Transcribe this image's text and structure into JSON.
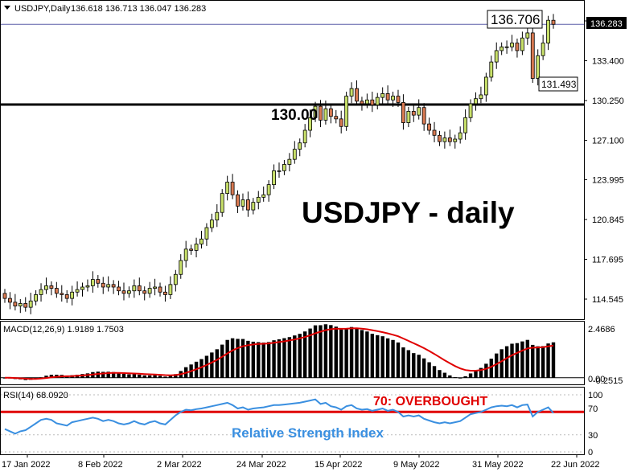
{
  "header": {
    "symbol": "USDJPY,Daily",
    "ohlc": "136.618 136.713 136.047 136.283"
  },
  "annotations": {
    "big_label": "USDJPY - daily",
    "level_label": "130.00",
    "high_box": "136.706",
    "low_box": "131.493",
    "price_tag": "136.283",
    "rsi_overbought_label": "70: OVERBOUGHT",
    "rsi_caption": "Relative Strength Index"
  },
  "macd_panel": {
    "title": "MACD(12,26,9) 1.9189 1.7503",
    "tick_labels": [
      "2.4686",
      "0.00",
      "-0.2515"
    ]
  },
  "rsi_panel": {
    "title": "RSI(14) 68.0920",
    "tick_labels": [
      "100",
      "70",
      "30",
      "0"
    ]
  },
  "colors": {
    "bull_candle": "#c8e06a",
    "bear_candle": "#d97a52",
    "macd_hist": "#000000",
    "macd_signal": "#e00000",
    "rsi_line": "#3a8fe0",
    "rsi_level": "#e00000",
    "caption_blue": "#3a8fe0",
    "overbought_red": "#e00000"
  },
  "chart_data": [
    {
      "type": "candlestick",
      "title": "USDJPY - daily",
      "y_ticks": [
        114.545,
        117.695,
        120.845,
        123.995,
        127.1,
        130.25,
        133.4,
        136.55
      ],
      "y_tick_labels": [
        "114.545",
        "117.695",
        "120.845",
        "123.995",
        "127.100",
        "130.250",
        "133.400",
        "136.550"
      ],
      "ylim": [
        112.6,
        138.4
      ],
      "x_tick_labels": [
        "17 Jan 2022",
        "8 Feb 2022",
        "2 Mar 2022",
        "24 Mar 2022",
        "15 Apr 2022",
        "9 May 2022",
        "31 May 2022",
        "22 Jun 2022"
      ],
      "horizontal_level": 130.0,
      "last_price": 136.283,
      "annotated_high": 136.706,
      "annotated_low": 131.493,
      "close": [
        114.6,
        114.3,
        114.0,
        114.2,
        113.9,
        114.4,
        114.9,
        115.3,
        115.6,
        115.4,
        115.0,
        114.9,
        114.6,
        115.1,
        115.3,
        115.5,
        115.6,
        116.1,
        115.8,
        115.5,
        115.7,
        115.5,
        115.2,
        115.0,
        115.2,
        115.6,
        115.2,
        115.0,
        115.4,
        115.5,
        115.1,
        114.9,
        115.7,
        116.5,
        117.6,
        118.5,
        118.4,
        118.9,
        119.3,
        120.2,
        120.8,
        121.4,
        122.9,
        123.8,
        122.8,
        121.9,
        122.4,
        121.6,
        122.2,
        122.6,
        122.8,
        123.6,
        124.7,
        124.7,
        125.2,
        125.6,
        126.4,
        126.9,
        127.9,
        128.9,
        129.8,
        128.7,
        129.6,
        129.0,
        128.8,
        128.2,
        130.6,
        131.2,
        130.2,
        130.0,
        130.3,
        129.9,
        130.5,
        130.8,
        130.3,
        130.6,
        130.1,
        128.5,
        129.4,
        129.1,
        129.7,
        128.4,
        127.9,
        127.5,
        127.0,
        127.3,
        127.0,
        127.2,
        127.7,
        128.9,
        130.0,
        130.4,
        130.7,
        132.1,
        133.3,
        134.2,
        134.5,
        134.5,
        134.8,
        134.2,
        135.2,
        135.6,
        132.0,
        133.8,
        134.8,
        136.6,
        136.28
      ],
      "rsi_points": [
        40,
        36,
        32,
        36,
        38,
        44,
        50,
        56,
        58,
        56,
        50,
        48,
        46,
        52,
        54,
        56,
        58,
        60,
        58,
        54,
        56,
        54,
        50,
        48,
        50,
        54,
        50,
        48,
        52,
        54,
        50,
        48,
        56,
        64,
        70,
        74,
        73,
        75,
        76,
        78,
        80,
        82,
        84,
        86,
        82,
        76,
        78,
        74,
        76,
        77,
        78,
        80,
        82,
        82,
        83,
        84,
        85,
        86,
        88,
        90,
        92,
        84,
        86,
        80,
        78,
        74,
        80,
        82,
        76,
        74,
        75,
        72,
        74,
        76,
        72,
        74,
        70,
        62,
        64,
        62,
        64,
        58,
        55,
        52,
        50,
        52,
        50,
        52,
        54,
        60,
        66,
        68,
        70,
        74,
        78,
        80,
        81,
        80,
        82,
        78,
        82,
        83,
        62,
        70,
        74,
        78,
        68
      ],
      "macd_hist_last": 1.9189,
      "macd_signal_last": 1.7503,
      "macd_ylim": [
        -0.2515,
        2.4686
      ]
    }
  ]
}
